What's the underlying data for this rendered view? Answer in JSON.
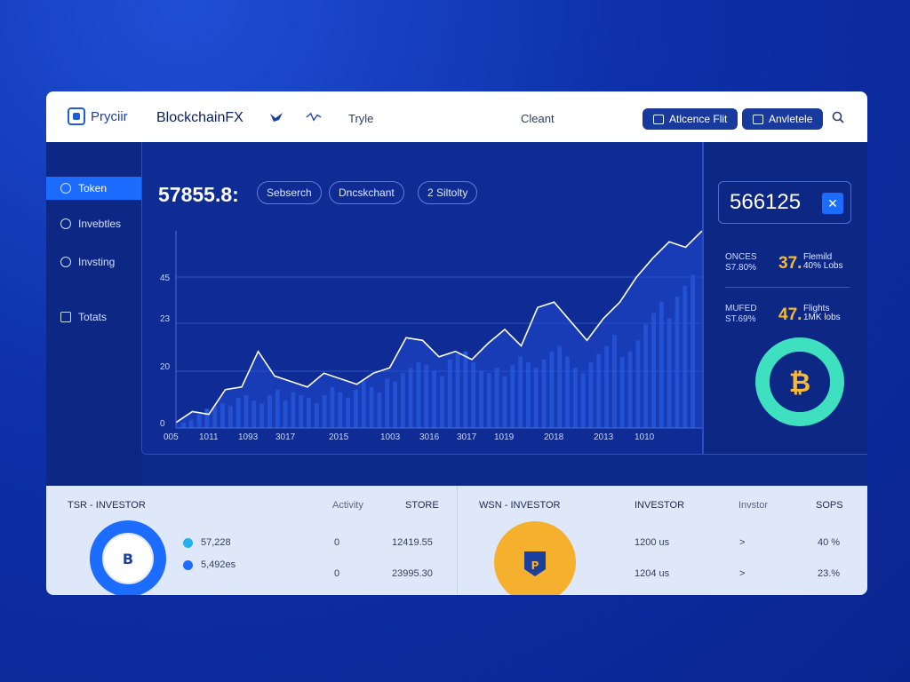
{
  "topbar": {
    "logo_text": "Pryciir",
    "brand": "BlockchainFX",
    "nav_item": "Tryle",
    "center_text": "Cleant",
    "btn1_label": "Atlcence Flit",
    "btn2_label": "Anvletele"
  },
  "sidebar": {
    "items": [
      {
        "label": "Token"
      },
      {
        "label": "Invebtles"
      },
      {
        "label": "Invsting"
      },
      {
        "label": "Totats"
      }
    ]
  },
  "main": {
    "big_value": "57855.8:",
    "chips": [
      "Sebserch",
      "Dncskchant",
      "2  Siltolty"
    ],
    "y_ticks": [
      "45",
      "23",
      "20",
      "0"
    ],
    "x_ticks": [
      "005",
      "1011",
      "1093",
      "3017",
      "2015",
      "1003",
      "3016",
      "3017",
      "1019",
      "2018",
      "2013",
      "1010"
    ]
  },
  "chart_data": {
    "type": "line",
    "line_values": [
      2,
      6,
      5,
      14,
      15,
      28,
      19,
      17,
      15,
      20,
      18,
      16,
      20,
      22,
      33,
      32,
      26,
      28,
      25,
      31,
      36,
      30,
      44,
      46,
      39,
      32,
      40,
      46,
      55,
      62,
      68,
      66,
      72
    ],
    "bar_values": [
      2,
      3,
      5,
      7,
      8,
      9,
      8,
      11,
      12,
      10,
      9,
      12,
      14,
      10,
      13,
      12,
      11,
      9,
      12,
      15,
      13,
      11,
      14,
      17,
      15,
      13,
      18,
      17,
      20,
      22,
      24,
      23,
      21,
      19,
      25,
      27,
      28,
      24,
      21,
      20,
      22,
      19,
      23,
      26,
      24,
      22,
      25,
      28,
      30,
      26,
      22,
      20,
      24,
      27,
      30,
      34,
      26,
      28,
      32,
      38,
      42,
      46,
      40,
      48,
      52,
      56
    ],
    "ylim": [
      0,
      72
    ],
    "grid": true
  },
  "right": {
    "value": "566125",
    "stat1_label_a": "ONCES",
    "stat1_label_b": "S7.80%",
    "stat1_big": "37.",
    "stat1_side_a": "Flemild",
    "stat1_side_b": "40% Lobs",
    "stat2_label_a": "MUFED",
    "stat2_label_b": "ST.69%",
    "stat2_big": "47.",
    "stat2_side_a": "Flights",
    "stat2_side_b": "1MK lobs",
    "donut_symbol": "₿"
  },
  "bottom": {
    "left": {
      "title": "TSR - INVESTOR",
      "col1": "Activity",
      "col2": "STORE",
      "legend1": "57,228",
      "legend2": "5,492es",
      "rows": [
        {
          "a": "0",
          "b": "12419.55"
        },
        {
          "a": "0",
          "b": "23995.30"
        }
      ],
      "donut_symbol": "B"
    },
    "right": {
      "title": "WSN - INVESTOR",
      "col1": "INVESTOR",
      "col2": "Invstor",
      "col3": "SOPS",
      "rows": [
        {
          "a": "1200 us",
          "b": ">",
          "c": "40 %"
        },
        {
          "a": "1204 us",
          "b": ">",
          "c": "23.%"
        }
      ],
      "coin_symbol": "P"
    }
  },
  "colors": {
    "accent": "#1c6cff",
    "gold": "#f5b93a",
    "teal": "#3fe0c0",
    "navy": "#0d2784"
  }
}
